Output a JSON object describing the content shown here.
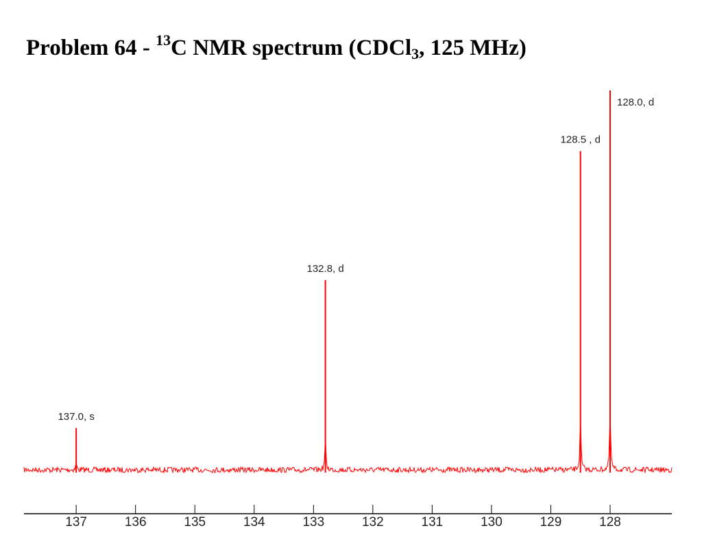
{
  "title": {
    "prefix": "Problem 64 - ",
    "isotope": "13",
    "main": "C NMR spectrum (CDCl",
    "sub": "3",
    "suffix": ", 125 MHz)"
  },
  "chart_data": {
    "type": "line",
    "title": "Problem 64 - 13C NMR spectrum (CDCl3, 125 MHz)",
    "xlabel": "",
    "ylabel": "",
    "xlim": [
      137.88,
      126.96
    ],
    "x_reversed": true,
    "xticks": [
      137,
      136,
      135,
      134,
      133,
      132,
      131,
      130,
      129,
      128
    ],
    "grid": false,
    "color": "#ff0000",
    "peaks": [
      {
        "shift": 137.0,
        "intensity": 11,
        "label": "137.0, s"
      },
      {
        "shift": 132.8,
        "intensity": 50,
        "label": "132.8, d"
      },
      {
        "shift": 128.5,
        "intensity": 84,
        "label": "128.5 , d"
      },
      {
        "shift": 128.0,
        "intensity": 100,
        "label": "128.0, d"
      }
    ]
  }
}
